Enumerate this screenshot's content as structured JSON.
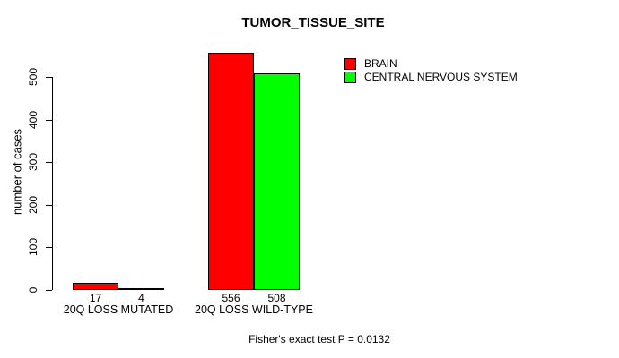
{
  "chart_data": {
    "type": "bar",
    "title": "TUMOR_TISSUE_SITE",
    "categories": [
      "20Q LOSS MUTATED",
      "20Q LOSS WILD-TYPE"
    ],
    "series": [
      {
        "name": "BRAIN",
        "color": "#FF0000",
        "values": [
          17,
          556
        ]
      },
      {
        "name": "CENTRAL NERVOUS SYSTEM",
        "color": "#00FF00",
        "values": [
          4,
          508
        ]
      }
    ],
    "xlabel": "",
    "ylabel": "number of cases",
    "yticks": [
      0,
      100,
      200,
      300,
      400,
      500
    ],
    "ylim": [
      0,
      590
    ],
    "grid": false,
    "bar_borders": "#000000",
    "show_value_labels": true,
    "legend_position": "top-right-inside",
    "legend_box": false,
    "annotation": "Fisher's exact test P = 0.0132",
    "background": "#FFFFFF"
  }
}
